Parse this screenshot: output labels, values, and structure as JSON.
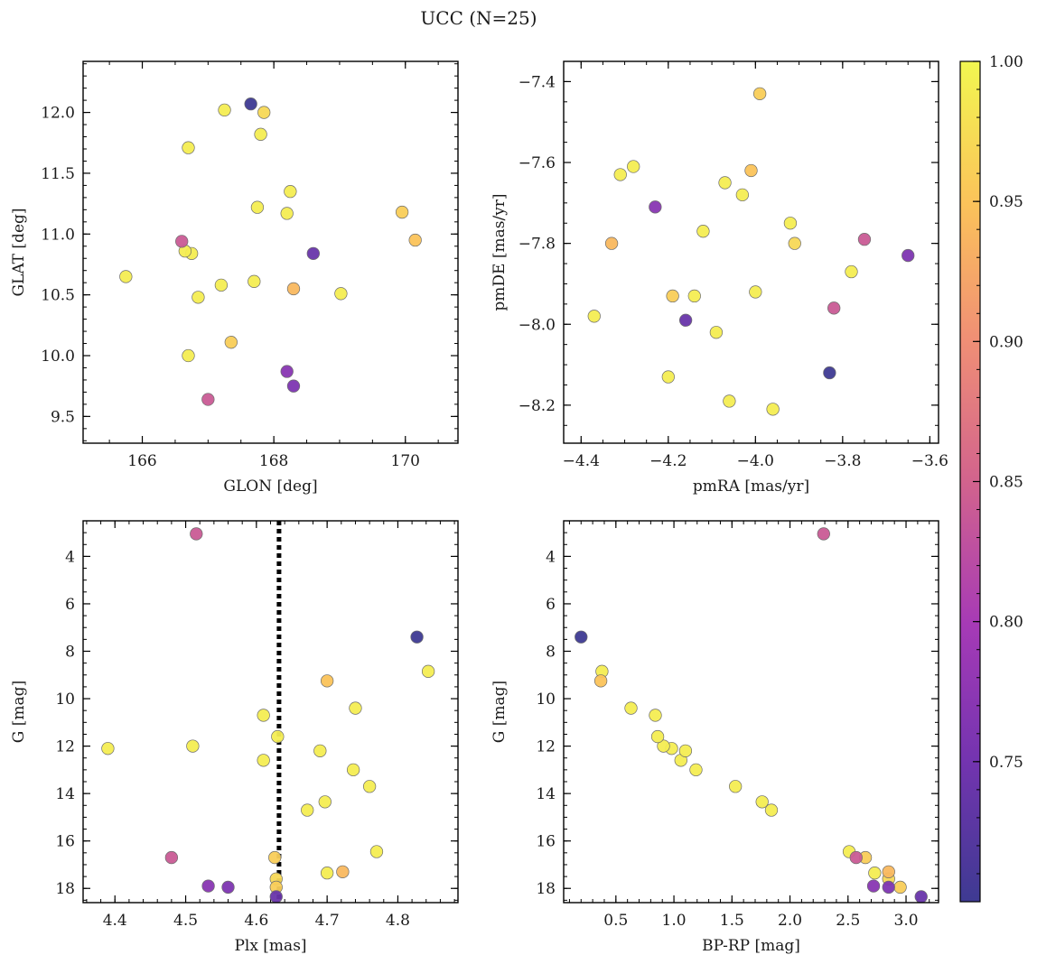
{
  "chart_data": {
    "title": "UCC (N=25)",
    "type": "scatter",
    "colorbar": {
      "min": 0.7,
      "max": 1.0,
      "ticks": [
        "1.00",
        "0.95",
        "0.90",
        "0.85",
        "0.80",
        "0.75"
      ],
      "tick_values": [
        1.0,
        0.95,
        0.9,
        0.85,
        0.8,
        0.75
      ],
      "colormap": "plasma"
    },
    "plx_reference_line": 4.632,
    "stars": [
      {
        "glon": 166.75,
        "glat": 10.84,
        "pmra": -4.37,
        "pmde": -7.98,
        "plx": 4.39,
        "g": 12.1,
        "bprp": 0.98,
        "prob": 0.99
      },
      {
        "glon": 166.7,
        "glat": 10.0,
        "pmra": -4.31,
        "pmde": -7.63,
        "plx": 4.51,
        "g": 12.0,
        "bprp": 0.91,
        "prob": 0.99
      },
      {
        "glon": 167.7,
        "glat": 10.61,
        "pmra": -4.28,
        "pmde": -7.61,
        "plx": 4.61,
        "g": 12.6,
        "bprp": 1.06,
        "prob": 0.99
      },
      {
        "glon": 168.3,
        "glat": 10.55,
        "pmra": -4.33,
        "pmde": -7.8,
        "plx": 4.722,
        "g": 17.3,
        "bprp": 2.85,
        "prob": 0.94
      },
      {
        "glon": 166.85,
        "glat": 10.48,
        "pmra": -4.2,
        "pmde": -8.13,
        "plx": 4.61,
        "g": 10.7,
        "bprp": 0.84,
        "prob": 0.99
      },
      {
        "glon": 167.35,
        "glat": 10.11,
        "pmra": -4.19,
        "pmde": -7.93,
        "plx": 4.626,
        "g": 16.7,
        "bprp": 2.65,
        "prob": 0.96
      },
      {
        "glon": 169.02,
        "glat": 10.51,
        "pmra": -4.14,
        "pmde": -7.93,
        "plx": 4.74,
        "g": 10.4,
        "bprp": 0.63,
        "prob": 0.99
      },
      {
        "glon": 167.75,
        "glat": 11.22,
        "pmra": -4.12,
        "pmde": -7.77,
        "plx": 4.737,
        "g": 13.0,
        "bprp": 1.19,
        "prob": 0.99
      },
      {
        "glon": 166.65,
        "glat": 10.86,
        "pmra": -4.09,
        "pmde": -8.02,
        "plx": 4.76,
        "g": 13.7,
        "bprp": 1.53,
        "prob": 0.99
      },
      {
        "glon": 168.2,
        "glat": 11.17,
        "pmra": -4.07,
        "pmde": -7.65,
        "plx": 4.69,
        "g": 12.2,
        "bprp": 1.1,
        "prob": 0.99
      },
      {
        "glon": 167.2,
        "glat": 10.58,
        "pmra": -4.06,
        "pmde": -8.19,
        "plx": 4.672,
        "g": 14.7,
        "bprp": 1.84,
        "prob": 0.99
      },
      {
        "glon": 168.25,
        "glat": 11.35,
        "pmra": -4.03,
        "pmde": -7.68,
        "plx": 4.697,
        "g": 14.35,
        "bprp": 1.76,
        "prob": 0.99
      },
      {
        "glon": 170.15,
        "glat": 10.95,
        "pmra": -4.01,
        "pmde": -7.62,
        "plx": 4.7,
        "g": 9.25,
        "bprp": 0.37,
        "prob": 0.95
      },
      {
        "glon": 165.75,
        "glat": 10.65,
        "pmra": -4.0,
        "pmde": -7.92,
        "plx": 4.77,
        "g": 16.45,
        "bprp": 2.51,
        "prob": 0.99
      },
      {
        "glon": 166.7,
        "glat": 11.71,
        "pmra": -3.96,
        "pmde": -8.21,
        "plx": 4.63,
        "g": 11.6,
        "bprp": 0.86,
        "prob": 0.99
      },
      {
        "glon": 167.25,
        "glat": 12.02,
        "pmra": -3.92,
        "pmde": -7.75,
        "plx": 4.843,
        "g": 8.85,
        "bprp": 0.38,
        "prob": 0.99
      },
      {
        "glon": 167.8,
        "glat": 11.82,
        "pmra": -3.78,
        "pmde": -7.87,
        "plx": 4.7,
        "g": 17.35,
        "bprp": 2.73,
        "prob": 0.99
      },
      {
        "glon": 167.85,
        "glat": 12.0,
        "pmra": -3.91,
        "pmde": -7.8,
        "plx": 4.628,
        "g": 17.6,
        "bprp": 2.85,
        "prob": 0.97
      },
      {
        "glon": 169.95,
        "glat": 11.18,
        "pmra": -3.99,
        "pmde": -7.43,
        "plx": 4.628,
        "g": 17.95,
        "bprp": 2.95,
        "prob": 0.96
      },
      {
        "glon": 166.6,
        "glat": 10.94,
        "pmra": -3.75,
        "pmde": -7.79,
        "plx": 4.48,
        "g": 16.7,
        "bprp": 2.57,
        "prob": 0.84
      },
      {
        "glon": 167.0,
        "glat": 9.64,
        "pmra": -3.82,
        "pmde": -7.96,
        "plx": 4.515,
        "g": 3.05,
        "bprp": 2.29,
        "prob": 0.84
      },
      {
        "glon": 168.2,
        "glat": 9.87,
        "pmra": -4.23,
        "pmde": -7.71,
        "plx": 4.532,
        "g": 17.9,
        "bprp": 2.72,
        "prob": 0.77
      },
      {
        "glon": 168.3,
        "glat": 9.75,
        "pmra": -3.65,
        "pmde": -7.83,
        "plx": 4.56,
        "g": 17.95,
        "bprp": 2.85,
        "prob": 0.76
      },
      {
        "glon": 168.6,
        "glat": 10.84,
        "pmra": -4.16,
        "pmde": -7.99,
        "plx": 4.628,
        "g": 18.35,
        "bprp": 3.13,
        "prob": 0.74
      },
      {
        "glon": 167.65,
        "glat": 12.07,
        "pmra": -3.83,
        "pmde": -8.12,
        "plx": 4.827,
        "g": 7.4,
        "bprp": 0.2,
        "prob": 0.7
      }
    ],
    "panels": [
      {
        "id": "glon-glat",
        "xkey": "glon",
        "ykey": "glat",
        "xlabel": "GLON [deg]",
        "ylabel": "GLAT [deg]",
        "xlim": [
          165.1,
          170.8
        ],
        "ylim": [
          9.28,
          12.42
        ],
        "yinvert": false,
        "xticks": [
          166,
          168,
          170
        ],
        "xticklabels": [
          "166",
          "168",
          "170"
        ],
        "xminor": 0.5,
        "yticks": [
          9.5,
          10.0,
          10.5,
          11.0,
          11.5,
          12.0
        ],
        "yticklabels": [
          "9.5",
          "10.0",
          "10.5",
          "11.0",
          "11.5",
          "12.0"
        ],
        "yminor": 0.1
      },
      {
        "id": "pmra-pmde",
        "xkey": "pmra",
        "ykey": "pmde",
        "xlabel": "pmRA [mas/yr]",
        "ylabel": "pmDE [mas/yr]",
        "xlim": [
          -4.44,
          -3.58
        ],
        "ylim": [
          -8.294,
          -7.35
        ],
        "yinvert": false,
        "xticks": [
          -4.4,
          -4.2,
          -4.0,
          -3.8,
          -3.6
        ],
        "xticklabels": [
          "−4.4",
          "−4.2",
          "−4.0",
          "−3.8",
          "−3.6"
        ],
        "xminor": 0.05,
        "yticks": [
          -8.2,
          -8.0,
          -7.8,
          -7.6,
          -7.4
        ],
        "yticklabels": [
          "−8.2",
          "−8.0",
          "−7.8",
          "−7.6",
          "−7.4"
        ],
        "yminor": 0.05
      },
      {
        "id": "plx-g",
        "xkey": "plx",
        "ykey": "g",
        "xlabel": "Plx [mas]",
        "ylabel": "G [mag]",
        "xlim": [
          4.355,
          4.885
        ],
        "ylim": [
          2.5,
          18.6
        ],
        "yinvert": true,
        "xticks": [
          4.4,
          4.5,
          4.6,
          4.7,
          4.8
        ],
        "xticklabels": [
          "4.4",
          "4.5",
          "4.6",
          "4.7",
          "4.8"
        ],
        "xminor": 0.02,
        "yticks": [
          4,
          6,
          8,
          10,
          12,
          14,
          16,
          18
        ],
        "yticklabels": [
          "4",
          "6",
          "8",
          "10",
          "12",
          "14",
          "16",
          "18"
        ],
        "yminor": 0.5
      },
      {
        "id": "bprp-g",
        "xkey": "bprp",
        "ykey": "g",
        "xlabel": "BP-RP [mag]",
        "ylabel": "G [mag]",
        "xlim": [
          0.05,
          3.28
        ],
        "ylim": [
          2.5,
          18.6
        ],
        "yinvert": true,
        "xticks": [
          0.5,
          1.0,
          1.5,
          2.0,
          2.5,
          3.0
        ],
        "xticklabels": [
          "0.5",
          "1.0",
          "1.5",
          "2.0",
          "2.5",
          "3.0"
        ],
        "xminor": 0.1,
        "yticks": [
          4,
          6,
          8,
          10,
          12,
          14,
          16,
          18
        ],
        "yticklabels": [
          "4",
          "6",
          "8",
          "10",
          "12",
          "14",
          "16",
          "18"
        ],
        "yminor": 0.5
      }
    ]
  }
}
